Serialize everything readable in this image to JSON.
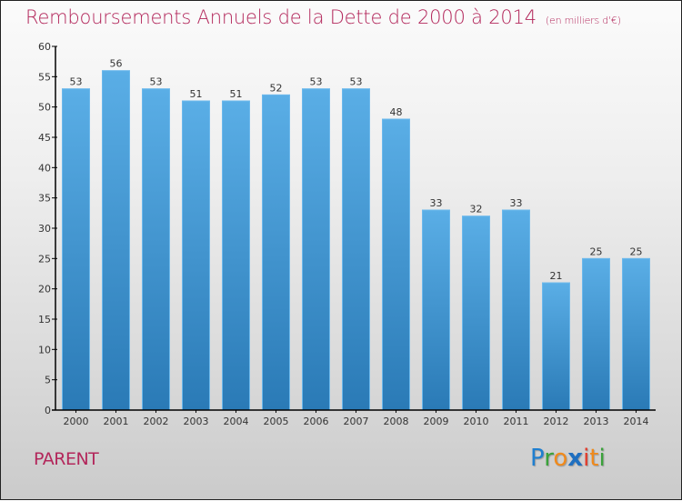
{
  "header": {
    "title": "Remboursements Annuels de la Dette de 2000 à 2014",
    "subtitle": "(en milliers d'€)"
  },
  "footer": {
    "commune": "PARENT",
    "logo": {
      "letters": [
        {
          "char": "P",
          "color": "#1f7fd0"
        },
        {
          "char": "r",
          "color": "#3aa23a"
        },
        {
          "char": "o",
          "color": "#f08a1c"
        },
        {
          "char": "x",
          "color": "#1f6fc0"
        },
        {
          "char": "i",
          "color": "#e23c2c"
        },
        {
          "char": "t",
          "color": "#f08a1c"
        },
        {
          "char": "i",
          "color": "#3aa23a"
        }
      ]
    }
  },
  "colors": {
    "title": "#b3275b",
    "bar_top": "#5aaee6",
    "bar_bottom": "#2a7ab6",
    "axis": "#000000"
  },
  "chart_data": {
    "type": "bar",
    "title": "Remboursements Annuels de la Dette de 2000 à 2014",
    "subtitle": "(en milliers d'€)",
    "xlabel": "",
    "ylabel": "",
    "categories": [
      "2000",
      "2001",
      "2002",
      "2003",
      "2004",
      "2005",
      "2006",
      "2007",
      "2008",
      "2009",
      "2010",
      "2011",
      "2012",
      "2013",
      "2014"
    ],
    "values": [
      53,
      56,
      53,
      51,
      51,
      52,
      53,
      53,
      48,
      33,
      32,
      33,
      21,
      25,
      25
    ],
    "ylim": [
      0,
      60
    ],
    "yticks": [
      0,
      5,
      10,
      15,
      20,
      25,
      30,
      35,
      40,
      45,
      50,
      55,
      60
    ],
    "grid": false,
    "legend": "none",
    "data_labels": true
  }
}
